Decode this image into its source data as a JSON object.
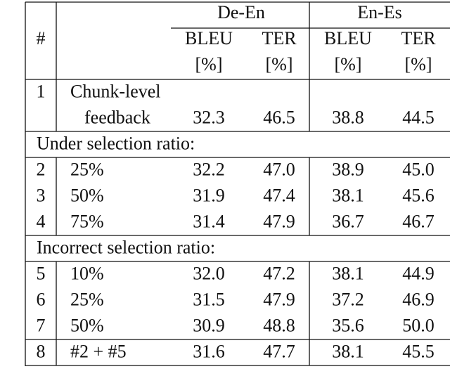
{
  "header": {
    "number": "#",
    "pairs": [
      "De-En",
      "En-Es"
    ],
    "metrics": [
      "BLEU",
      "TER",
      "BLEU",
      "TER"
    ],
    "units": [
      "[%]",
      "[%]",
      "[%]",
      "[%]"
    ]
  },
  "blocks": [
    {
      "rows": [
        {
          "number": "1",
          "method": [
            "Chunk-level",
            "feedback"
          ],
          "scores": [
            "32.3",
            "46.5",
            "38.8",
            "44.5"
          ]
        }
      ]
    },
    {
      "label": "Under selection ratio:",
      "rows": [
        {
          "number": "2",
          "method": [
            "25%"
          ],
          "scores": [
            "32.2",
            "47.0",
            "38.9",
            "45.0"
          ]
        },
        {
          "number": "3",
          "method": [
            "50%"
          ],
          "scores": [
            "31.9",
            "47.4",
            "38.1",
            "45.6"
          ]
        },
        {
          "number": "4",
          "method": [
            "75%"
          ],
          "scores": [
            "31.4",
            "47.9",
            "36.7",
            "46.7"
          ]
        }
      ]
    },
    {
      "label": "Incorrect selection ratio:",
      "rows": [
        {
          "number": "5",
          "method": [
            "10%"
          ],
          "scores": [
            "32.0",
            "47.2",
            "38.1",
            "44.9"
          ]
        },
        {
          "number": "6",
          "method": [
            "25%"
          ],
          "scores": [
            "31.5",
            "47.9",
            "37.2",
            "46.9"
          ]
        },
        {
          "number": "7",
          "method": [
            "50%"
          ],
          "scores": [
            "30.9",
            "48.8",
            "35.6",
            "50.0"
          ]
        }
      ]
    },
    {
      "rows": [
        {
          "number": "8",
          "method": [
            "#2 + #5"
          ],
          "scores": [
            "31.6",
            "47.7",
            "38.1",
            "45.5"
          ]
        }
      ]
    }
  ]
}
